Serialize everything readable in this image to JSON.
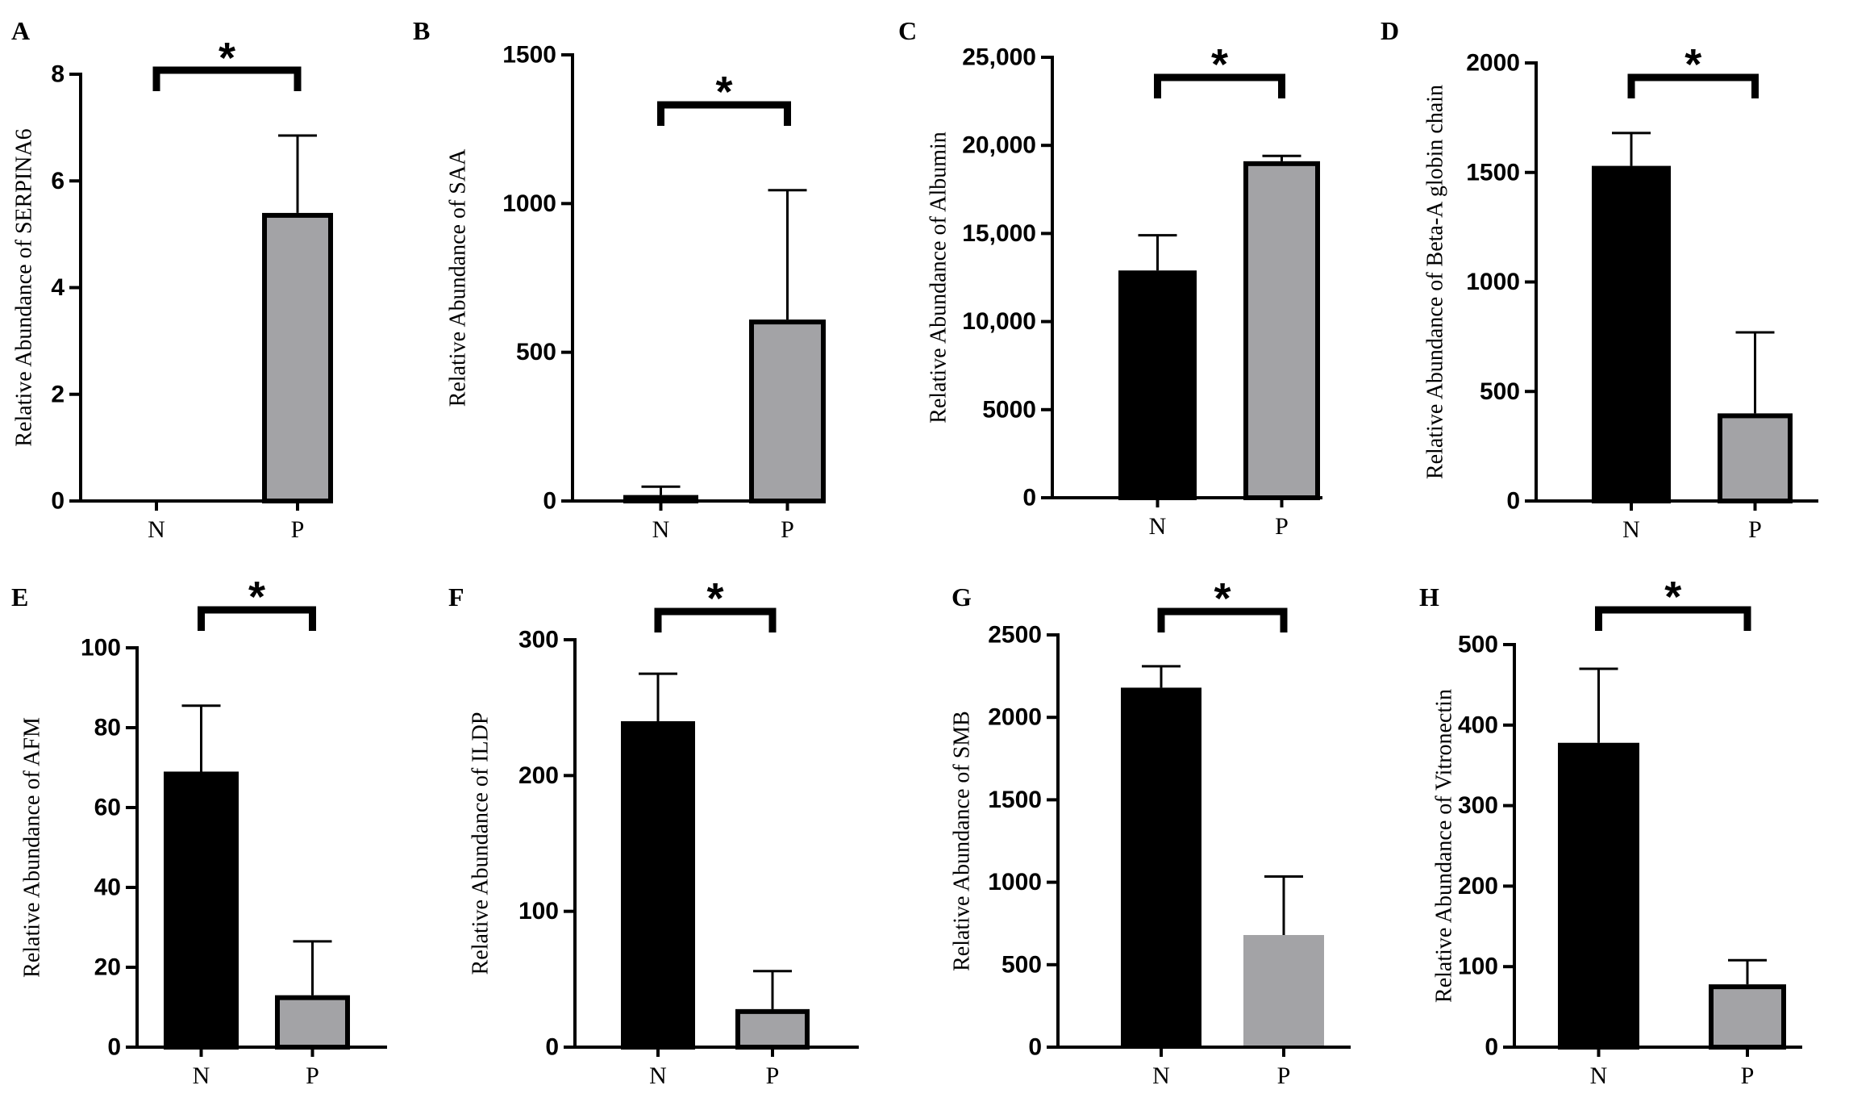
{
  "chart_data": [
    {
      "panel": "A",
      "type": "bar",
      "categories": [
        "N",
        "P"
      ],
      "values": [
        0,
        5.4
      ],
      "errors": [
        0,
        1.45
      ],
      "fills": [
        "#000000",
        "#a3a3a6"
      ],
      "outlined": [
        true,
        true
      ],
      "ylabel": "Relative Abundance of SERPINA6",
      "ylim": [
        0,
        8
      ],
      "yticks": [
        0,
        2,
        4,
        6,
        8
      ],
      "ytick_labels": [
        "0",
        "2",
        "4",
        "6",
        "8"
      ],
      "significance": "*"
    },
    {
      "panel": "B",
      "type": "bar",
      "categories": [
        "N",
        "P"
      ],
      "values": [
        20,
        610
      ],
      "errors": [
        28,
        435
      ],
      "fills": [
        "#000000",
        "#a3a3a6"
      ],
      "outlined": [
        true,
        true
      ],
      "ylabel": "Relative Abundance of SAA",
      "ylim": [
        0,
        1500
      ],
      "yticks": [
        0,
        500,
        1000,
        1500
      ],
      "ytick_labels": [
        "0",
        "500",
        "1000",
        "1500"
      ],
      "significance": "*"
    },
    {
      "panel": "C",
      "type": "bar",
      "categories": [
        "N",
        "P"
      ],
      "values": [
        12900,
        19100
      ],
      "errors": [
        2000,
        300
      ],
      "fills": [
        "#000000",
        "#a3a3a6"
      ],
      "outlined": [
        true,
        true
      ],
      "ylabel": "Relative Abundance of Albumin",
      "ylim": [
        0,
        25000
      ],
      "yticks": [
        0,
        5000,
        10000,
        15000,
        20000,
        25000
      ],
      "ytick_labels": [
        "0",
        "5000",
        "10,000",
        "15,000",
        "20,000",
        "25,000"
      ],
      "significance": "*"
    },
    {
      "panel": "D",
      "type": "bar",
      "categories": [
        "N",
        "P"
      ],
      "values": [
        1530,
        400
      ],
      "errors": [
        150,
        370
      ],
      "fills": [
        "#000000",
        "#a3a3a6"
      ],
      "outlined": [
        true,
        true
      ],
      "ylabel": "Relative Abundance of Beta-A globin chain",
      "ylim": [
        0,
        2000
      ],
      "yticks": [
        0,
        500,
        1000,
        1500,
        2000
      ],
      "ytick_labels": [
        "0",
        "500",
        "1000",
        "1500",
        "2000"
      ],
      "significance": "*"
    },
    {
      "panel": "E",
      "type": "bar",
      "categories": [
        "N",
        "P"
      ],
      "values": [
        69,
        13
      ],
      "errors": [
        16.5,
        13.5
      ],
      "fills": [
        "#000000",
        "#a3a3a6"
      ],
      "outlined": [
        true,
        true
      ],
      "ylabel": "Relative Abundance of AFM",
      "ylim": [
        0,
        100
      ],
      "yticks": [
        0,
        20,
        40,
        60,
        80,
        100
      ],
      "ytick_labels": [
        "0",
        "20",
        "40",
        "60",
        "80",
        "100"
      ],
      "significance": "*"
    },
    {
      "panel": "F",
      "type": "bar",
      "categories": [
        "N",
        "P"
      ],
      "values": [
        240,
        28
      ],
      "errors": [
        35,
        28
      ],
      "fills": [
        "#000000",
        "#a3a3a6"
      ],
      "outlined": [
        true,
        true
      ],
      "ylabel": "Relative Abundance of ILDP",
      "ylim": [
        0,
        300
      ],
      "yticks": [
        0,
        100,
        200,
        300
      ],
      "ytick_labels": [
        "0",
        "100",
        "200",
        "300"
      ],
      "significance": "*"
    },
    {
      "panel": "G",
      "type": "bar",
      "categories": [
        "N",
        "P"
      ],
      "values": [
        2180,
        680
      ],
      "errors": [
        130,
        355
      ],
      "fills": [
        "#000000",
        "#a3a3a6"
      ],
      "outlined": [
        false,
        false
      ],
      "ylabel": "Relative Abundance of SMB",
      "ylim": [
        0,
        2500
      ],
      "yticks": [
        0,
        500,
        1000,
        1500,
        2000,
        2500
      ],
      "ytick_labels": [
        "0",
        "500",
        "1000",
        "1500",
        "2000",
        "2500"
      ],
      "significance": "*"
    },
    {
      "panel": "H",
      "type": "bar",
      "categories": [
        "N",
        "P"
      ],
      "values": [
        378,
        78
      ],
      "errors": [
        92,
        30
      ],
      "fills": [
        "#000000",
        "#a3a3a6"
      ],
      "outlined": [
        true,
        true
      ],
      "ylabel": "Relative Abundance of Vitronectin",
      "ylim": [
        0,
        500
      ],
      "yticks": [
        0,
        100,
        200,
        300,
        400,
        500
      ],
      "ytick_labels": [
        "0",
        "100",
        "200",
        "300",
        "400",
        "500"
      ],
      "significance": "*"
    }
  ]
}
